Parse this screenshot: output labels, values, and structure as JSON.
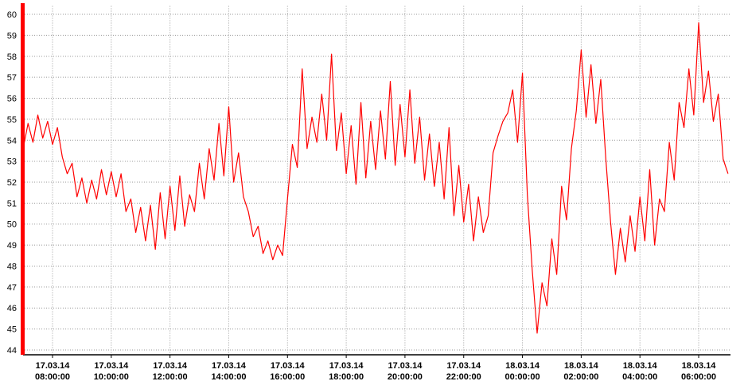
{
  "chart_data": {
    "type": "line",
    "color": "#ff0000",
    "grid": true,
    "ylim": [
      43.9,
      60.4
    ],
    "yticks": [
      44,
      45,
      46,
      47,
      48,
      49,
      50,
      51,
      52,
      53,
      54,
      55,
      56,
      57,
      58,
      59,
      60
    ],
    "xlim": [
      "17.03.14 07:00:00",
      "18.03.14 07:05:00"
    ],
    "xticks": [
      "17.03.14 08:00:00",
      "17.03.14 10:00:00",
      "17.03.14 12:00:00",
      "17.03.14 14:00:00",
      "17.03.14 16:00:00",
      "17.03.14 18:00:00",
      "17.03.14 20:00:00",
      "17.03.14 22:00:00",
      "18.03.14 00:00:00",
      "18.03.14 02:00:00",
      "18.03.14 04:00:00",
      "18.03.14 06:00:00"
    ],
    "x": [
      "17.03.14 07:00:00",
      "17.03.14 07:10:00",
      "17.03.14 07:20:00",
      "17.03.14 07:30:00",
      "17.03.14 07:40:00",
      "17.03.14 07:50:00",
      "17.03.14 08:00:00",
      "17.03.14 08:10:00",
      "17.03.14 08:20:00",
      "17.03.14 08:30:00",
      "17.03.14 08:40:00",
      "17.03.14 08:50:00",
      "17.03.14 09:00:00",
      "17.03.14 09:10:00",
      "17.03.14 09:20:00",
      "17.03.14 09:30:00",
      "17.03.14 09:40:00",
      "17.03.14 09:50:00",
      "17.03.14 10:00:00",
      "17.03.14 10:10:00",
      "17.03.14 10:20:00",
      "17.03.14 10:30:00",
      "17.03.14 10:40:00",
      "17.03.14 10:50:00",
      "17.03.14 11:00:00",
      "17.03.14 11:10:00",
      "17.03.14 11:20:00",
      "17.03.14 11:30:00",
      "17.03.14 11:40:00",
      "17.03.14 11:50:00",
      "17.03.14 12:00:00",
      "17.03.14 12:10:00",
      "17.03.14 12:20:00",
      "17.03.14 12:30:00",
      "17.03.14 12:40:00",
      "17.03.14 12:50:00",
      "17.03.14 13:00:00",
      "17.03.14 13:10:00",
      "17.03.14 13:20:00",
      "17.03.14 13:30:00",
      "17.03.14 13:40:00",
      "17.03.14 13:50:00",
      "17.03.14 14:00:00",
      "17.03.14 14:10:00",
      "17.03.14 14:20:00",
      "17.03.14 14:30:00",
      "17.03.14 14:40:00",
      "17.03.14 14:50:00",
      "17.03.14 15:00:00",
      "17.03.14 15:10:00",
      "17.03.14 15:20:00",
      "17.03.14 15:30:00",
      "17.03.14 15:40:00",
      "17.03.14 15:50:00",
      "17.03.14 16:00:00",
      "17.03.14 16:10:00",
      "17.03.14 16:20:00",
      "17.03.14 16:30:00",
      "17.03.14 16:40:00",
      "17.03.14 16:50:00",
      "17.03.14 17:00:00",
      "17.03.14 17:10:00",
      "17.03.14 17:20:00",
      "17.03.14 17:30:00",
      "17.03.14 17:40:00",
      "17.03.14 17:50:00",
      "17.03.14 18:00:00",
      "17.03.14 18:10:00",
      "17.03.14 18:20:00",
      "17.03.14 18:30:00",
      "17.03.14 18:40:00",
      "17.03.14 18:50:00",
      "17.03.14 19:00:00",
      "17.03.14 19:10:00",
      "17.03.14 19:20:00",
      "17.03.14 19:30:00",
      "17.03.14 19:40:00",
      "17.03.14 19:50:00",
      "17.03.14 20:00:00",
      "17.03.14 20:10:00",
      "17.03.14 20:20:00",
      "17.03.14 20:30:00",
      "17.03.14 20:40:00",
      "17.03.14 20:50:00",
      "17.03.14 21:00:00",
      "17.03.14 21:10:00",
      "17.03.14 21:20:00",
      "17.03.14 21:30:00",
      "17.03.14 21:40:00",
      "17.03.14 21:50:00",
      "17.03.14 22:00:00",
      "17.03.14 22:10:00",
      "17.03.14 22:20:00",
      "17.03.14 22:30:00",
      "17.03.14 22:40:00",
      "17.03.14 22:50:00",
      "17.03.14 23:00:00",
      "17.03.14 23:10:00",
      "17.03.14 23:20:00",
      "17.03.14 23:30:00",
      "17.03.14 23:40:00",
      "17.03.14 23:50:00",
      "18.03.14 00:00:00",
      "18.03.14 00:10:00",
      "18.03.14 00:20:00",
      "18.03.14 00:30:00",
      "18.03.14 00:40:00",
      "18.03.14 00:50:00",
      "18.03.14 01:00:00",
      "18.03.14 01:10:00",
      "18.03.14 01:20:00",
      "18.03.14 01:30:00",
      "18.03.14 01:40:00",
      "18.03.14 01:50:00",
      "18.03.14 02:00:00",
      "18.03.14 02:10:00",
      "18.03.14 02:20:00",
      "18.03.14 02:30:00",
      "18.03.14 02:40:00",
      "18.03.14 02:50:00",
      "18.03.14 03:00:00",
      "18.03.14 03:10:00",
      "18.03.14 03:20:00",
      "18.03.14 03:30:00",
      "18.03.14 03:40:00",
      "18.03.14 03:50:00",
      "18.03.14 04:00:00",
      "18.03.14 04:10:00",
      "18.03.14 04:20:00",
      "18.03.14 04:30:00",
      "18.03.14 04:40:00",
      "18.03.14 04:50:00",
      "18.03.14 05:00:00",
      "18.03.14 05:10:00",
      "18.03.14 05:20:00",
      "18.03.14 05:30:00",
      "18.03.14 05:40:00",
      "18.03.14 05:50:00",
      "18.03.14 06:00:00",
      "18.03.14 06:10:00",
      "18.03.14 06:20:00",
      "18.03.14 06:30:00",
      "18.03.14 06:40:00",
      "18.03.14 06:50:00",
      "18.03.14 07:00:00"
    ],
    "values": [
      53.6,
      54.8,
      53.9,
      55.2,
      54.1,
      54.9,
      53.8,
      54.6,
      53.2,
      52.4,
      52.9,
      51.3,
      52.2,
      51.0,
      52.1,
      51.2,
      52.6,
      51.4,
      52.5,
      51.3,
      52.4,
      50.6,
      51.2,
      49.6,
      50.8,
      49.2,
      50.9,
      48.8,
      51.5,
      49.3,
      51.8,
      49.7,
      52.3,
      49.9,
      51.4,
      50.6,
      52.9,
      51.2,
      53.6,
      52.1,
      54.8,
      52.3,
      55.6,
      52.0,
      53.4,
      51.3,
      50.6,
      49.4,
      49.9,
      48.6,
      49.2,
      48.3,
      49.0,
      48.5,
      51.2,
      53.8,
      52.7,
      57.4,
      53.6,
      55.1,
      53.9,
      56.2,
      54.0,
      58.1,
      53.5,
      55.3,
      52.4,
      54.7,
      51.9,
      55.8,
      52.2,
      54.9,
      52.6,
      55.4,
      53.1,
      56.8,
      52.8,
      55.7,
      53.2,
      56.4,
      52.9,
      55.1,
      52.1,
      54.3,
      51.8,
      53.9,
      51.2,
      54.6,
      50.4,
      52.8,
      50.1,
      51.9,
      49.2,
      51.3,
      49.6,
      50.4,
      53.4,
      54.2,
      54.9,
      55.3,
      56.4,
      53.9,
      57.2,
      51.4,
      47.8,
      44.8,
      47.2,
      46.1,
      49.3,
      47.6,
      51.8,
      50.2,
      53.6,
      55.4,
      58.3,
      55.1,
      57.6,
      54.8,
      56.9,
      53.2,
      50.1,
      47.6,
      49.8,
      48.2,
      50.4,
      48.7,
      51.3,
      49.2,
      52.6,
      49.0,
      51.2,
      50.6,
      53.9,
      52.1,
      55.8,
      54.6,
      57.4,
      55.2,
      59.6,
      55.8,
      57.3,
      54.9,
      56.2,
      53.1,
      52.4
    ]
  }
}
